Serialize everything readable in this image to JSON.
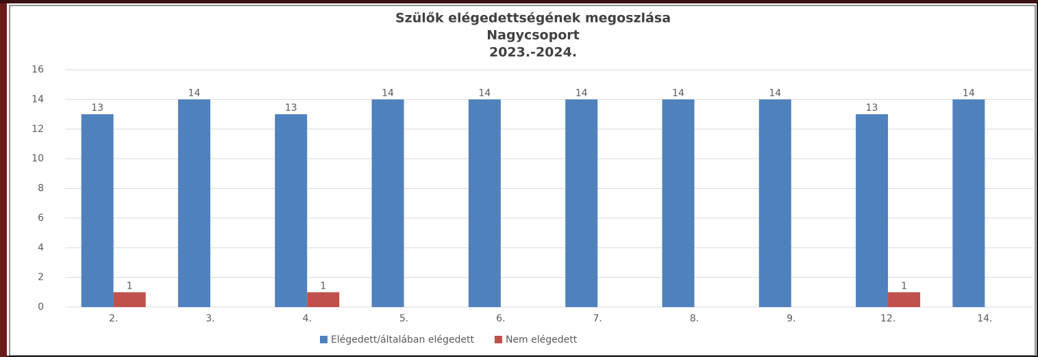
{
  "chart_data": {
    "type": "bar",
    "title": [
      "Szülők elégedettségének megoszlása",
      "Nagycsoport",
      "2023.-2024."
    ],
    "categories": [
      "2.",
      "3.",
      "4.",
      "5.",
      "6.",
      "7.",
      "8.",
      "9.",
      "12.",
      "14."
    ],
    "series": [
      {
        "name": "Elégedett/általában elégedett",
        "color": "#4f81bd",
        "values": [
          13,
          14,
          13,
          14,
          14,
          14,
          14,
          14,
          13,
          14
        ]
      },
      {
        "name": "Nem elégedett",
        "color": "#c0504d",
        "values": [
          1,
          null,
          1,
          null,
          null,
          null,
          null,
          null,
          1,
          null
        ]
      }
    ],
    "ylim": [
      0,
      16
    ],
    "yticks": [
      0,
      2,
      4,
      6,
      8,
      10,
      12,
      14,
      16
    ],
    "grid": true,
    "legend": "bottom"
  }
}
